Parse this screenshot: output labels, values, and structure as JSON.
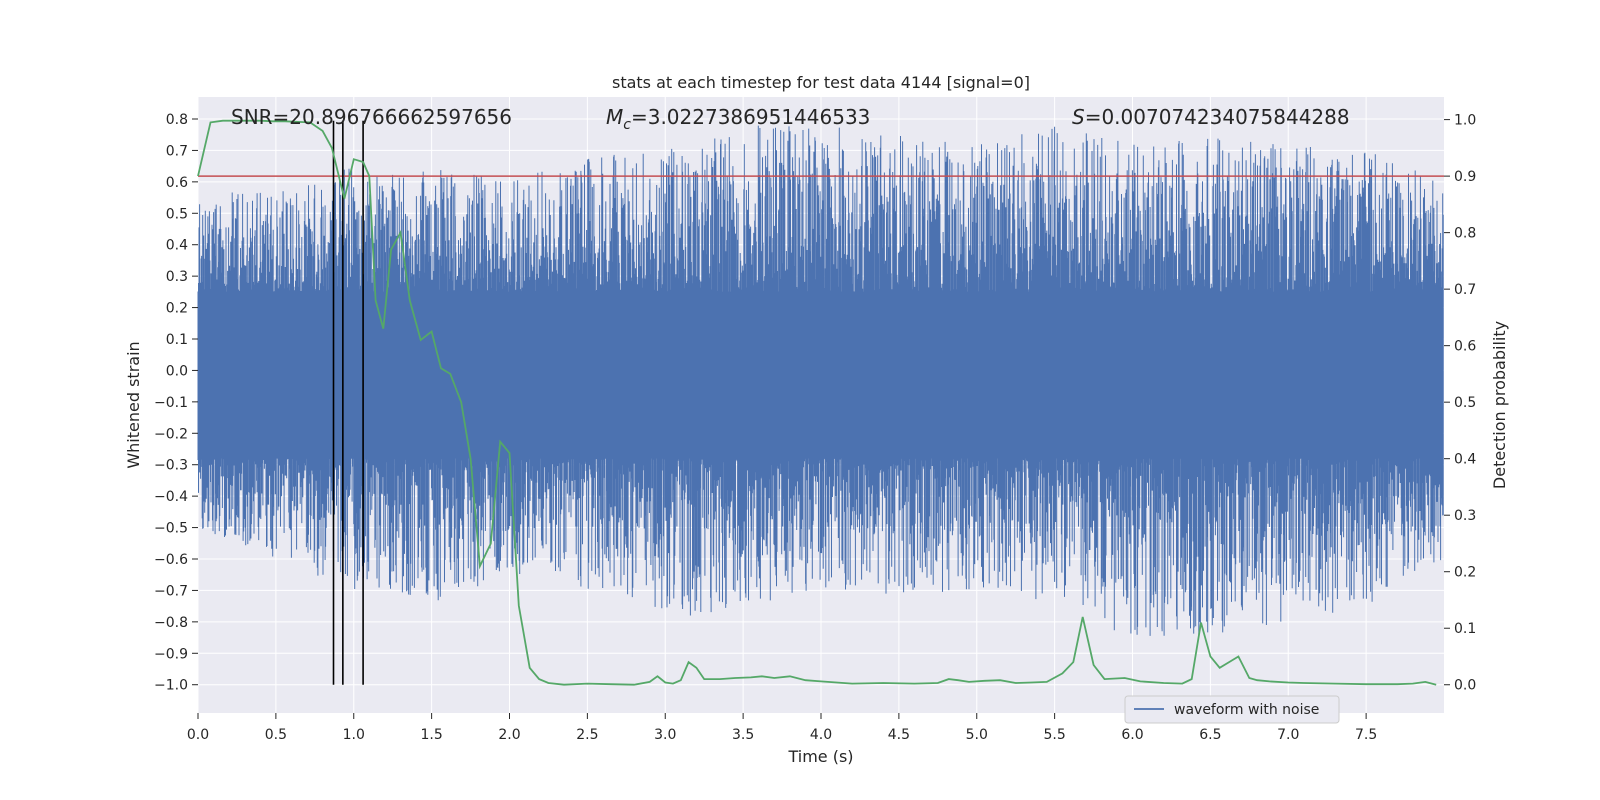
{
  "chart_data": {
    "type": "line",
    "title": "stats at each timestep for test data 4144 [signal=0]",
    "xlabel": "Time (s)",
    "ylabel": "Whitened strain",
    "y2label": "Detection probability",
    "xlim": [
      0.0,
      8.0
    ],
    "ylim": [
      -1.09,
      0.87
    ],
    "y2lim": [
      -0.05,
      1.04
    ],
    "x_ticks": [
      0.0,
      0.5,
      1.0,
      1.5,
      2.0,
      2.5,
      3.0,
      3.5,
      4.0,
      4.5,
      5.0,
      5.5,
      6.0,
      6.5,
      7.0,
      7.5
    ],
    "x_tick_labels": [
      "0.0",
      "0.5",
      "1.0",
      "1.5",
      "2.0",
      "2.5",
      "3.0",
      "3.5",
      "4.0",
      "4.5",
      "5.0",
      "5.5",
      "6.0",
      "6.5",
      "7.0",
      "7.5"
    ],
    "y_ticks": [
      0.8,
      0.7,
      0.6,
      0.5,
      0.4,
      0.3,
      0.2,
      0.1,
      0.0,
      -0.1,
      -0.2,
      -0.3,
      -0.4,
      -0.5,
      -0.6,
      -0.7,
      -0.8,
      -0.9,
      -1.0
    ],
    "y_tick_labels": [
      "0.8",
      "0.7",
      "0.6",
      "0.5",
      "0.4",
      "0.3",
      "0.2",
      "0.1",
      "0.0",
      "−0.1",
      "−0.2",
      "−0.3",
      "−0.4",
      "−0.5",
      "−0.6",
      "−0.7",
      "−0.8",
      "−0.9",
      "−1.0"
    ],
    "y2_ticks": [
      1.0,
      0.9,
      0.8,
      0.7,
      0.6,
      0.5,
      0.4,
      0.3,
      0.2,
      0.1,
      0.0
    ],
    "y2_tick_labels": [
      "1.0",
      "0.9",
      "0.8",
      "0.7",
      "0.6",
      "0.5",
      "0.4",
      "0.3",
      "0.2",
      "0.1",
      "0.0"
    ],
    "grid": true,
    "legend_position": "bottom-right",
    "annotations": {
      "snr": "SNR=20.896766662597656",
      "mc_symbol": "M",
      "mc_sub": "c",
      "mc_value": "=3.0227386951446533",
      "s_symbol": "S",
      "s_value": "=0.007074234075844288"
    },
    "threshold": {
      "y2": 0.9,
      "color": "#c44e52"
    },
    "vertical_lines": {
      "x": [
        0.87,
        0.93,
        1.06
      ],
      "color": "#000000"
    },
    "series": [
      {
        "name": "waveform with noise",
        "axis": "left",
        "color": "#4c72b0",
        "style": "dense-noise",
        "envelope_x": [
          0.0,
          0.5,
          1.0,
          1.5,
          2.0,
          2.5,
          3.0,
          3.5,
          4.0,
          4.5,
          5.0,
          5.5,
          6.0,
          6.5,
          7.0,
          7.5,
          8.0
        ],
        "envelope_upper": [
          0.55,
          0.6,
          0.65,
          0.65,
          0.6,
          0.68,
          0.7,
          0.78,
          0.78,
          0.75,
          0.72,
          0.78,
          0.72,
          0.75,
          0.72,
          0.7,
          0.6
        ],
        "envelope_lower": [
          -0.5,
          -0.6,
          -0.7,
          -0.75,
          -0.65,
          -0.7,
          -0.8,
          -0.75,
          -0.7,
          -0.72,
          -0.7,
          -0.75,
          -0.85,
          -0.85,
          -0.8,
          -0.75,
          -0.6
        ],
        "peaks_x": [
          6.19,
          6.43,
          6.86
        ],
        "peaks_y": [
          -0.83,
          -0.8,
          -0.81
        ]
      },
      {
        "name": "",
        "axis": "right",
        "color": "#55a868",
        "x": [
          0.0,
          0.08,
          0.16,
          0.24,
          0.32,
          0.4,
          0.48,
          0.56,
          0.64,
          0.72,
          0.8,
          0.86,
          0.94,
          1.0,
          1.06,
          1.1,
          1.14,
          1.19,
          1.24,
          1.3,
          1.36,
          1.43,
          1.5,
          1.56,
          1.62,
          1.69,
          1.75,
          1.81,
          1.88,
          1.94,
          2.0,
          2.06,
          2.13,
          2.19,
          2.25,
          2.35,
          2.5,
          2.65,
          2.8,
          2.9,
          2.95,
          3.0,
          3.05,
          3.1,
          3.15,
          3.2,
          3.25,
          3.3,
          3.35,
          3.45,
          3.55,
          3.62,
          3.7,
          3.8,
          3.9,
          4.0,
          4.1,
          4.2,
          4.4,
          4.6,
          4.75,
          4.82,
          4.88,
          4.95,
          5.05,
          5.15,
          5.25,
          5.35,
          5.45,
          5.55,
          5.62,
          5.68,
          5.75,
          5.82,
          5.95,
          6.05,
          6.2,
          6.32,
          6.38,
          6.44,
          6.5,
          6.56,
          6.62,
          6.68,
          6.75,
          6.8,
          6.88,
          7.0,
          7.1,
          7.3,
          7.5,
          7.7,
          7.8,
          7.88,
          7.95
        ],
        "y": [
          0.9,
          0.995,
          0.998,
          0.998,
          0.998,
          0.998,
          0.997,
          0.997,
          0.996,
          0.995,
          0.98,
          0.95,
          0.86,
          0.93,
          0.925,
          0.9,
          0.68,
          0.63,
          0.77,
          0.8,
          0.68,
          0.61,
          0.625,
          0.56,
          0.55,
          0.5,
          0.4,
          0.21,
          0.25,
          0.43,
          0.41,
          0.14,
          0.03,
          0.01,
          0.003,
          0.0,
          0.002,
          0.001,
          0.0,
          0.005,
          0.015,
          0.004,
          0.002,
          0.008,
          0.04,
          0.03,
          0.01,
          0.01,
          0.01,
          0.012,
          0.013,
          0.015,
          0.012,
          0.015,
          0.008,
          0.006,
          0.004,
          0.002,
          0.003,
          0.002,
          0.003,
          0.01,
          0.008,
          0.005,
          0.007,
          0.008,
          0.003,
          0.004,
          0.005,
          0.02,
          0.04,
          0.12,
          0.035,
          0.01,
          0.012,
          0.006,
          0.003,
          0.002,
          0.01,
          0.11,
          0.05,
          0.03,
          0.04,
          0.05,
          0.012,
          0.008,
          0.006,
          0.004,
          0.003,
          0.002,
          0.001,
          0.001,
          0.002,
          0.005,
          0.0
        ]
      }
    ]
  }
}
